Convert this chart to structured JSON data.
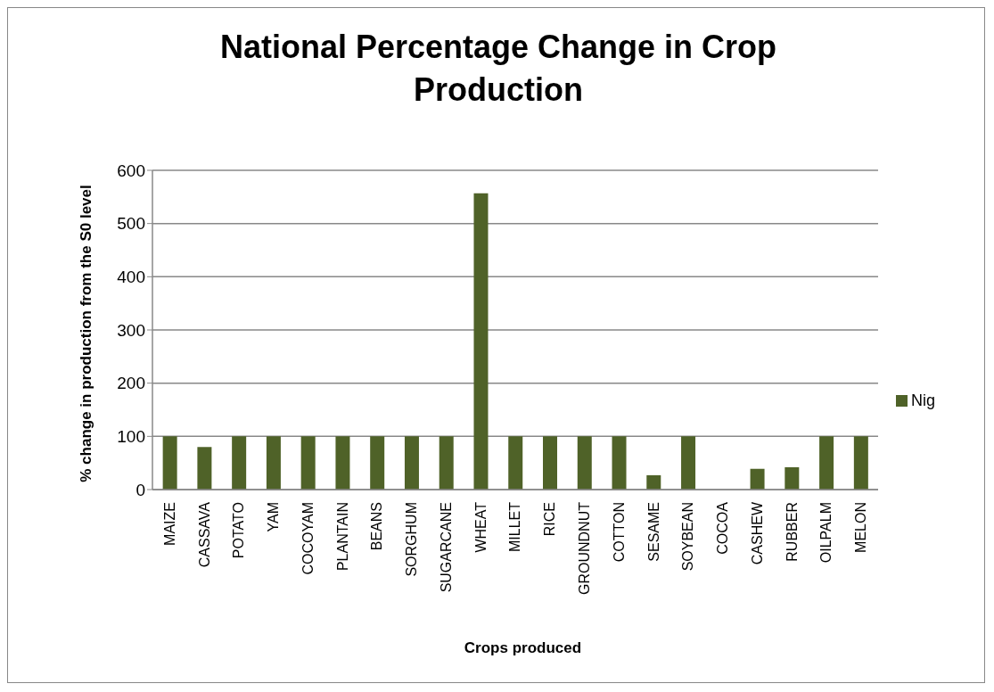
{
  "chart_data": {
    "type": "bar",
    "title": "National Percentage Change in Crop Production",
    "xlabel": "Crops  produced",
    "ylabel": "% change in production from the S0 level",
    "categories": [
      "MAIZE",
      "CASSAVA",
      "POTATO",
      "YAM",
      "COCOYAM",
      "PLANTAIN",
      "BEANS",
      "SORGHUM",
      "SUGARCANE",
      "WHEAT",
      "MILLET",
      "RICE",
      "GROUNDNUT",
      "COTTON",
      "SESAME",
      "SOYBEAN",
      "COCOA",
      "CASHEW",
      "RUBBER",
      "OILPALM",
      "MELON"
    ],
    "series": [
      {
        "name": "Nig",
        "color": "#4f6228",
        "values": [
          100,
          80,
          100,
          100,
          100,
          100,
          100,
          100,
          100,
          557,
          100,
          100,
          100,
          100,
          27,
          100,
          0,
          39,
          42,
          100,
          100
        ]
      }
    ],
    "ylim": [
      0,
      600
    ],
    "yticks": [
      0,
      100,
      200,
      300,
      400,
      500,
      600
    ],
    "grid": "y",
    "legend": "right"
  }
}
